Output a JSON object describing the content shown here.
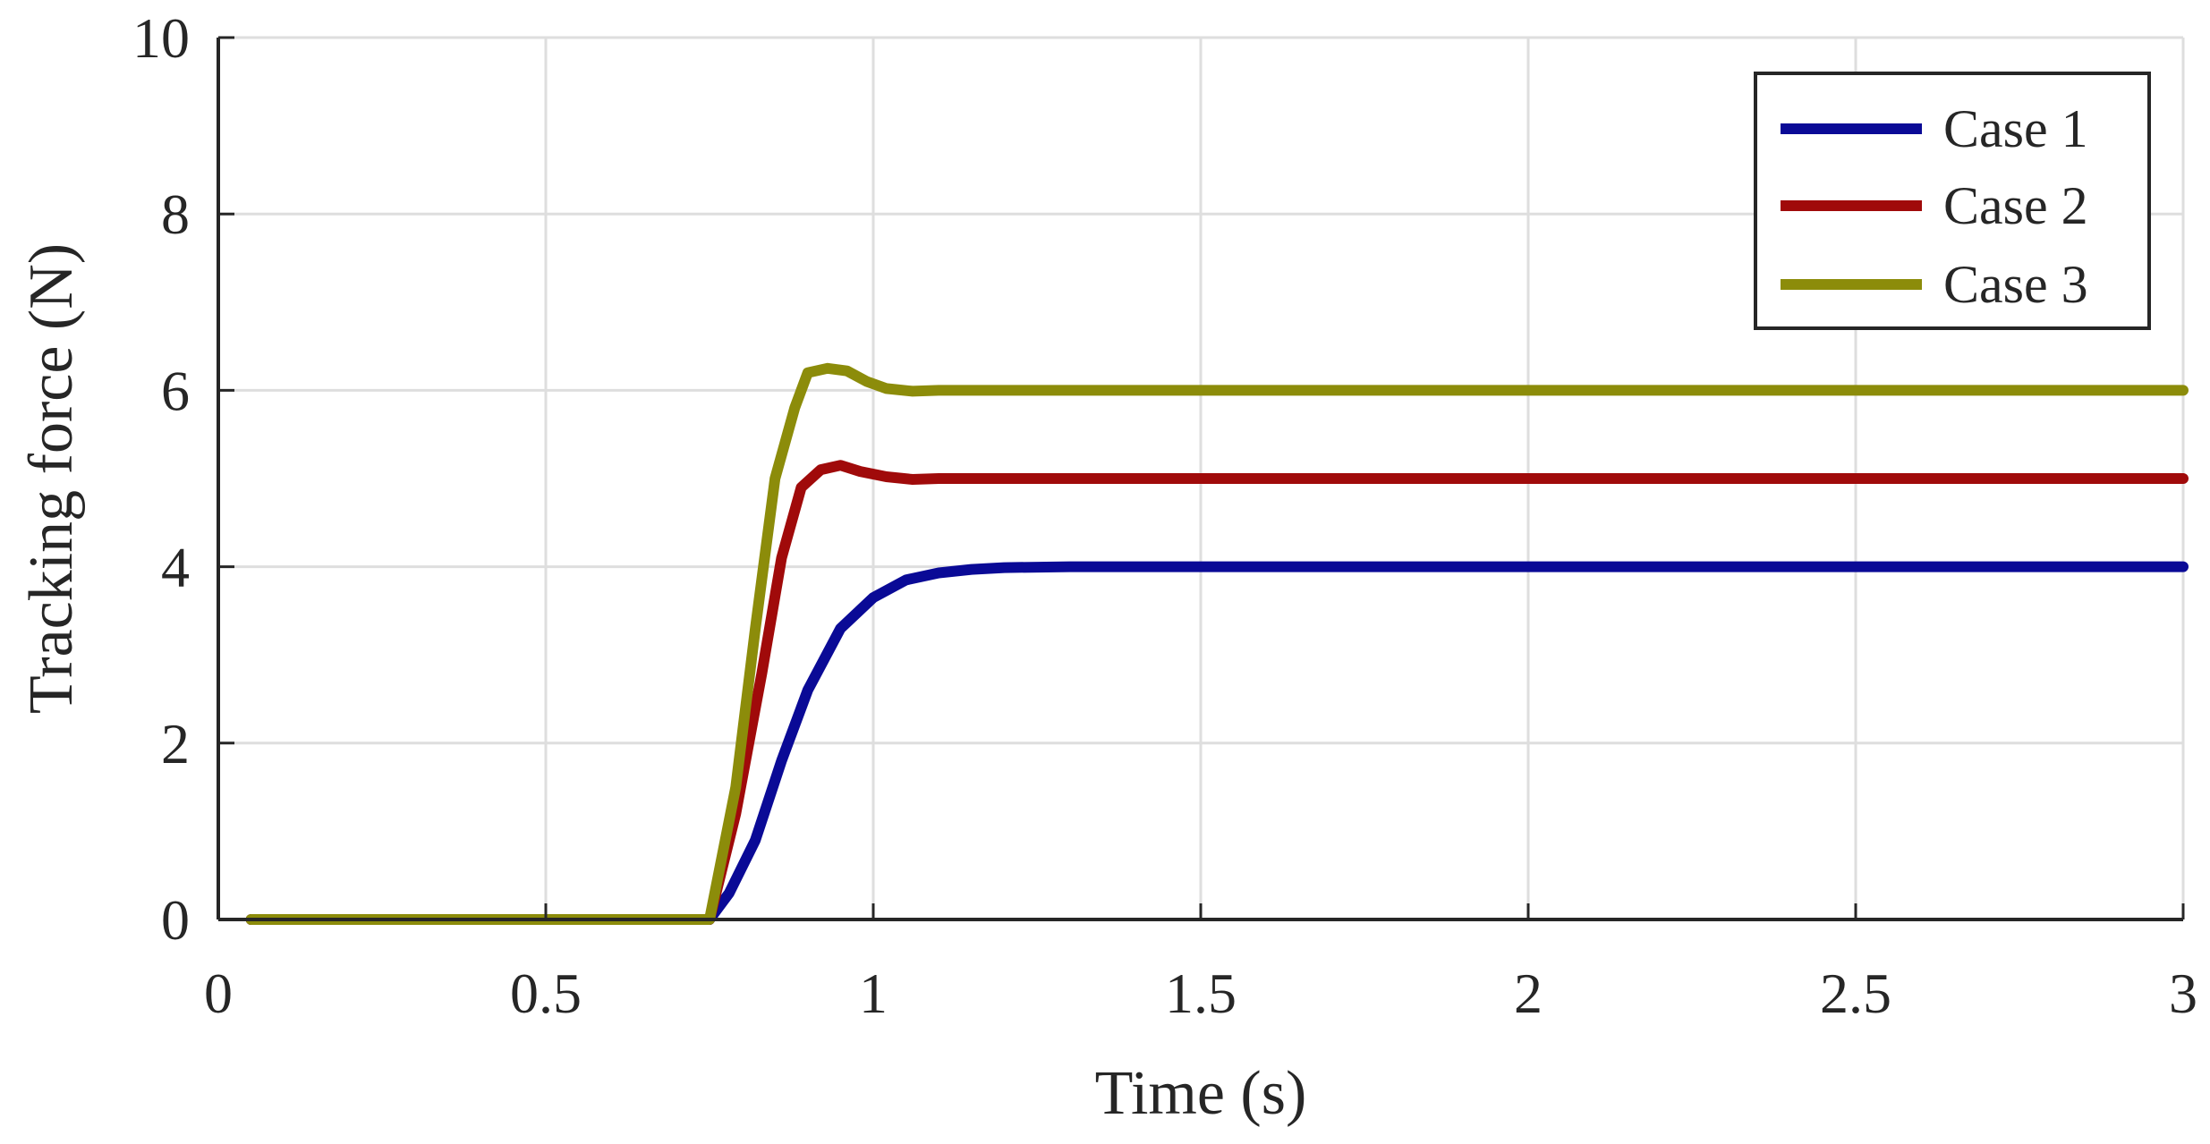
{
  "chart_data": {
    "type": "line",
    "xlabel": "Time (s)",
    "ylabel": "Tracking force (N)",
    "xlim": [
      0,
      3
    ],
    "ylim": [
      0,
      10
    ],
    "xticks": [
      0,
      0.5,
      1,
      1.5,
      2,
      2.5,
      3
    ],
    "xtick_labels": [
      "0",
      "0.5",
      "1",
      "1.5",
      "2",
      "2.5",
      "3"
    ],
    "yticks": [
      0,
      2,
      4,
      6,
      8,
      10
    ],
    "ytick_labels": [
      "0",
      "2",
      "4",
      "6",
      "8",
      "10"
    ],
    "grid": true,
    "legend_position": "top-right",
    "series": [
      {
        "name": "Case 1",
        "color": "#0a0a96",
        "x": [
          0.05,
          0.75,
          0.78,
          0.82,
          0.86,
          0.9,
          0.95,
          1.0,
          1.05,
          1.1,
          1.15,
          1.2,
          1.3,
          1.5,
          2.0,
          2.5,
          3.0
        ],
        "y": [
          0,
          0,
          0.3,
          0.9,
          1.8,
          2.6,
          3.3,
          3.65,
          3.85,
          3.93,
          3.97,
          3.99,
          4.0,
          4.0,
          4.0,
          4.0,
          4.0
        ]
      },
      {
        "name": "Case 2",
        "color": "#a00a0a",
        "x": [
          0.05,
          0.75,
          0.79,
          0.83,
          0.86,
          0.89,
          0.92,
          0.95,
          0.98,
          1.02,
          1.06,
          1.1,
          1.2,
          1.5,
          2.0,
          2.5,
          3.0
        ],
        "y": [
          0,
          0,
          1.2,
          2.8,
          4.1,
          4.9,
          5.1,
          5.15,
          5.08,
          5.02,
          4.99,
          5.0,
          5.0,
          5.0,
          5.0,
          5.0,
          5.0
        ]
      },
      {
        "name": "Case 3",
        "color": "#8c8c0a",
        "x": [
          0.05,
          0.75,
          0.79,
          0.82,
          0.85,
          0.88,
          0.9,
          0.93,
          0.96,
          0.99,
          1.02,
          1.06,
          1.1,
          1.2,
          1.5,
          2.0,
          2.5,
          3.0
        ],
        "y": [
          0,
          0,
          1.5,
          3.3,
          5.0,
          5.8,
          6.2,
          6.25,
          6.22,
          6.1,
          6.02,
          5.99,
          6.0,
          6.0,
          6.0,
          6.0,
          6.0,
          6.0
        ]
      }
    ]
  }
}
